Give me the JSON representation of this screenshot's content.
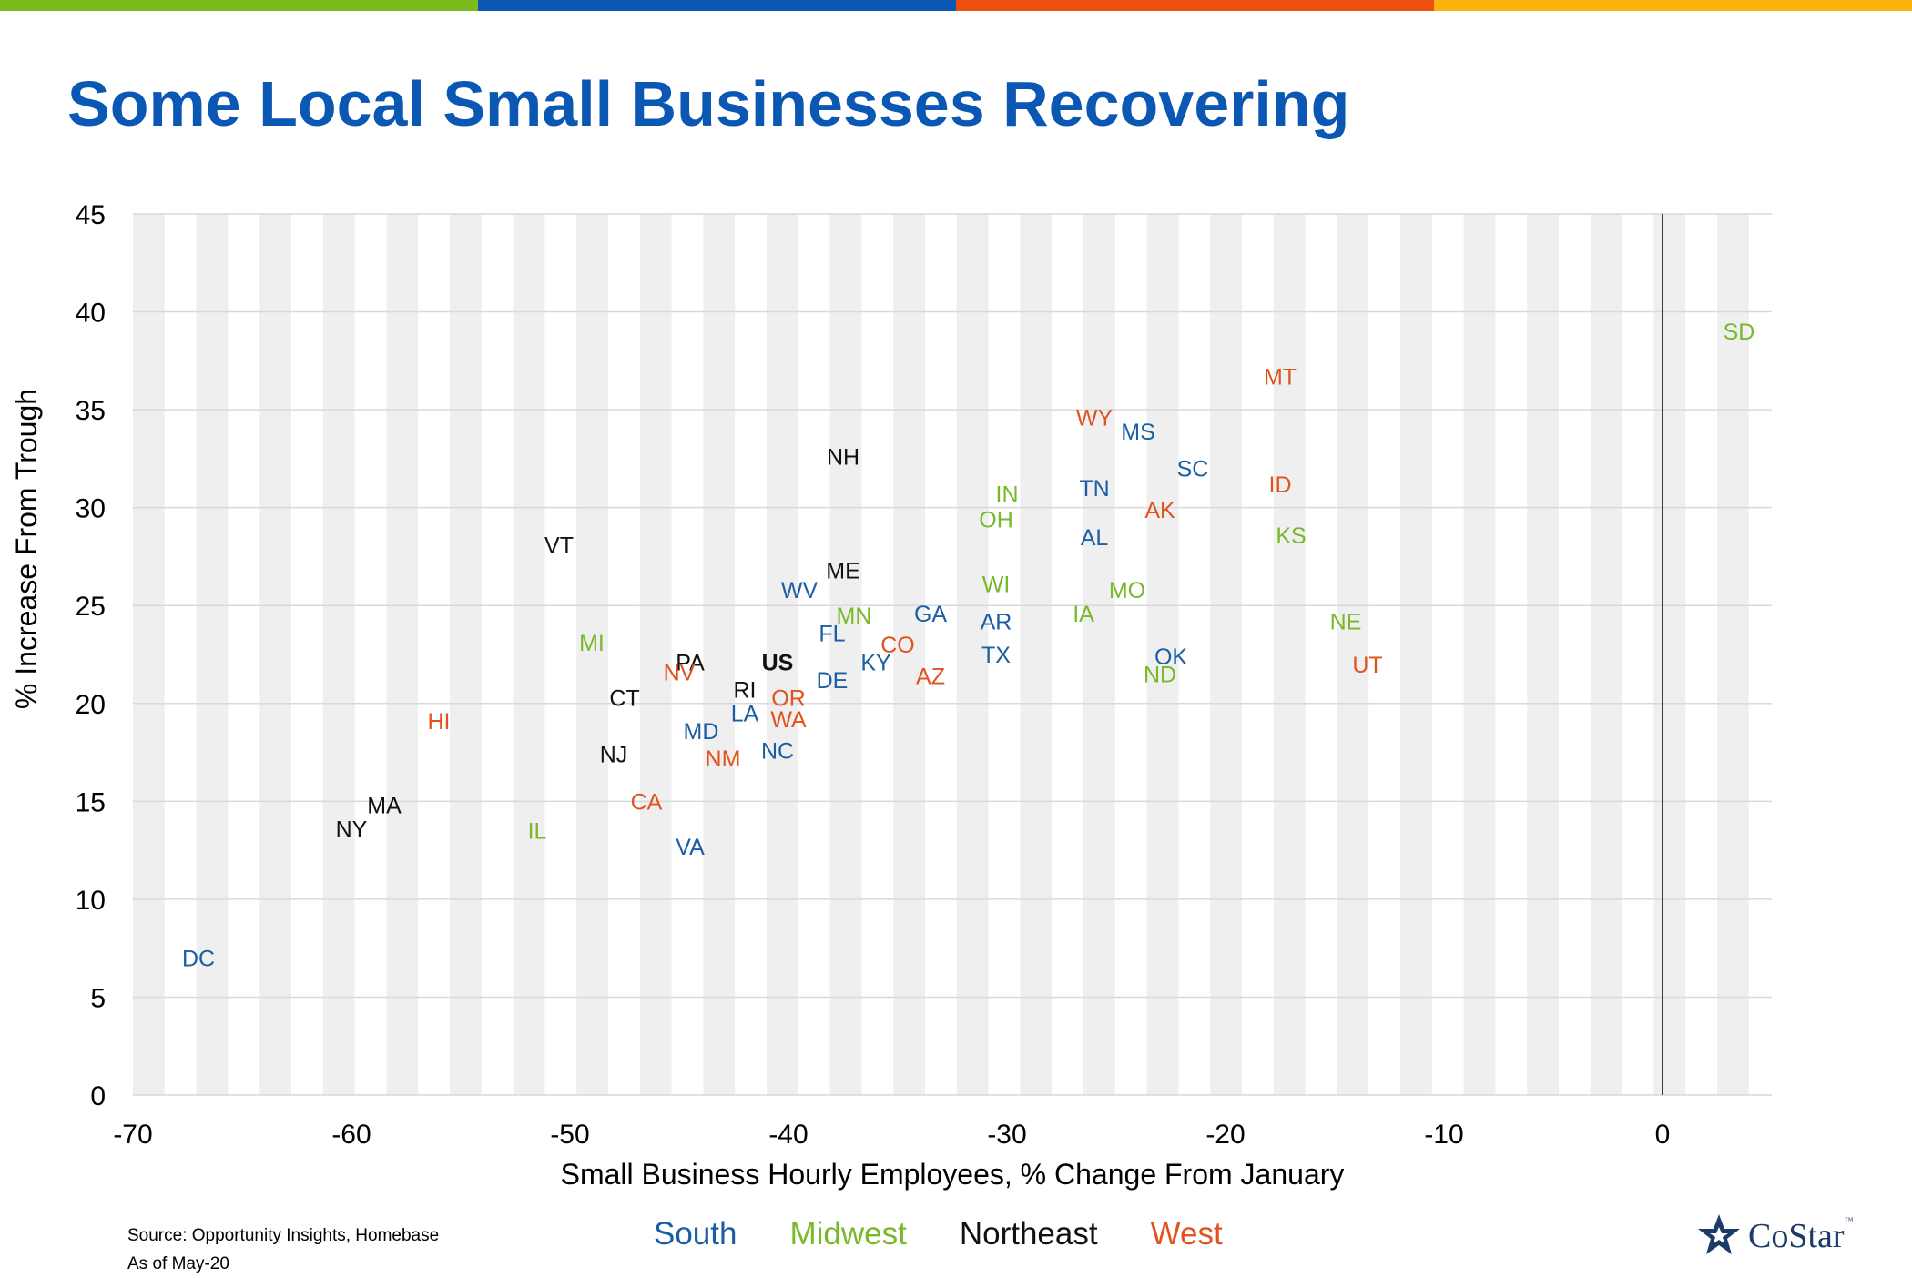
{
  "header": {
    "title": "Some Local Small Businesses Recovering",
    "bar_colors": [
      "#7cba1e",
      "#0a57b4",
      "#f04e0c",
      "#fbb40f"
    ]
  },
  "colors": {
    "South": "#1b5ea6",
    "Midwest": "#78b82a",
    "Northeast": "#111111",
    "West": "#e0531f"
  },
  "chart_data": {
    "type": "scatter",
    "title": "",
    "xlabel": "Small Business Hourly Employees, % Change From January",
    "ylabel": "% Increase From Trough",
    "xlim": [
      -70,
      5
    ],
    "ylim": [
      0,
      45
    ],
    "xticks": [
      -70,
      -60,
      -50,
      -40,
      -30,
      -20,
      -10,
      0
    ],
    "yticks": [
      0,
      5,
      10,
      15,
      20,
      25,
      30,
      35,
      40,
      45
    ],
    "xtick_labels": [
      "-70",
      "-60",
      "-50",
      "-40",
      "-30",
      "-20",
      "-10",
      "0"
    ],
    "ytick_labels": [
      "0",
      "5",
      "10",
      "15",
      "20",
      "25",
      "30",
      "35",
      "40",
      "45"
    ],
    "legend": [
      "South",
      "Midwest",
      "Northeast",
      "West"
    ],
    "legend_position": "bottom-center",
    "points": [
      {
        "label": "SD",
        "x": 3.5,
        "y": 39.0,
        "region": "Midwest"
      },
      {
        "label": "MT",
        "x": -17.5,
        "y": 36.7,
        "region": "West"
      },
      {
        "label": "WY",
        "x": -26.0,
        "y": 34.6,
        "region": "West"
      },
      {
        "label": "MS",
        "x": -24.0,
        "y": 33.9,
        "region": "South"
      },
      {
        "label": "NH",
        "x": -37.5,
        "y": 32.6,
        "region": "Northeast"
      },
      {
        "label": "SC",
        "x": -21.5,
        "y": 32.0,
        "region": "South"
      },
      {
        "label": "ID",
        "x": -17.5,
        "y": 31.2,
        "region": "West"
      },
      {
        "label": "TN",
        "x": -26.0,
        "y": 31.0,
        "region": "South"
      },
      {
        "label": "IN",
        "x": -30.0,
        "y": 30.7,
        "region": "Midwest"
      },
      {
        "label": "AK",
        "x": -23.0,
        "y": 29.9,
        "region": "West"
      },
      {
        "label": "OH",
        "x": -30.5,
        "y": 29.4,
        "region": "Midwest"
      },
      {
        "label": "KS",
        "x": -17.0,
        "y": 28.6,
        "region": "Midwest"
      },
      {
        "label": "AL",
        "x": -26.0,
        "y": 28.5,
        "region": "South"
      },
      {
        "label": "VT",
        "x": -50.5,
        "y": 28.1,
        "region": "Northeast"
      },
      {
        "label": "ME",
        "x": -37.5,
        "y": 26.8,
        "region": "Northeast"
      },
      {
        "label": "WI",
        "x": -30.5,
        "y": 26.1,
        "region": "Midwest"
      },
      {
        "label": "WV",
        "x": -39.5,
        "y": 25.8,
        "region": "South"
      },
      {
        "label": "MO",
        "x": -24.5,
        "y": 25.8,
        "region": "Midwest"
      },
      {
        "label": "IA",
        "x": -26.5,
        "y": 24.6,
        "region": "Midwest"
      },
      {
        "label": "GA",
        "x": -33.5,
        "y": 24.6,
        "region": "South"
      },
      {
        "label": "MN",
        "x": -37.0,
        "y": 24.5,
        "region": "Midwest"
      },
      {
        "label": "AR",
        "x": -30.5,
        "y": 24.2,
        "region": "South"
      },
      {
        "label": "NE",
        "x": -14.5,
        "y": 24.2,
        "region": "Midwest"
      },
      {
        "label": "FL",
        "x": -38.0,
        "y": 23.6,
        "region": "South"
      },
      {
        "label": "MI",
        "x": -49.0,
        "y": 23.1,
        "region": "Midwest"
      },
      {
        "label": "CO",
        "x": -35.0,
        "y": 23.0,
        "region": "West"
      },
      {
        "label": "TX",
        "x": -30.5,
        "y": 22.5,
        "region": "South"
      },
      {
        "label": "OK",
        "x": -22.5,
        "y": 22.4,
        "region": "South"
      },
      {
        "label": "PA",
        "x": -44.5,
        "y": 22.1,
        "region": "Northeast"
      },
      {
        "label": "US",
        "x": -40.5,
        "y": 22.1,
        "region": "Northeast"
      },
      {
        "label": "KY",
        "x": -36.0,
        "y": 22.1,
        "region": "South"
      },
      {
        "label": "UT",
        "x": -13.5,
        "y": 22.0,
        "region": "West"
      },
      {
        "label": "NV",
        "x": -45.0,
        "y": 21.6,
        "region": "West"
      },
      {
        "label": "ND",
        "x": -23.0,
        "y": 21.5,
        "region": "Midwest"
      },
      {
        "label": "AZ",
        "x": -33.5,
        "y": 21.4,
        "region": "West"
      },
      {
        "label": "DE",
        "x": -38.0,
        "y": 21.2,
        "region": "South"
      },
      {
        "label": "RI",
        "x": -42.0,
        "y": 20.7,
        "region": "Northeast"
      },
      {
        "label": "CT",
        "x": -47.5,
        "y": 20.3,
        "region": "Northeast"
      },
      {
        "label": "OR",
        "x": -40.0,
        "y": 20.3,
        "region": "West"
      },
      {
        "label": "LA",
        "x": -42.0,
        "y": 19.5,
        "region": "South"
      },
      {
        "label": "HI",
        "x": -56.0,
        "y": 19.1,
        "region": "West"
      },
      {
        "label": "WA",
        "x": -40.0,
        "y": 19.2,
        "region": "West"
      },
      {
        "label": "MD",
        "x": -44.0,
        "y": 18.6,
        "region": "South"
      },
      {
        "label": "NJ",
        "x": -48.0,
        "y": 17.4,
        "region": "Northeast"
      },
      {
        "label": "NC",
        "x": -40.5,
        "y": 17.6,
        "region": "South"
      },
      {
        "label": "NM",
        "x": -43.0,
        "y": 17.2,
        "region": "West"
      },
      {
        "label": "CA",
        "x": -46.5,
        "y": 15.0,
        "region": "West"
      },
      {
        "label": "MA",
        "x": -58.5,
        "y": 14.8,
        "region": "Northeast"
      },
      {
        "label": "NY",
        "x": -60.0,
        "y": 13.6,
        "region": "Northeast"
      },
      {
        "label": "IL",
        "x": -51.5,
        "y": 13.5,
        "region": "Midwest"
      },
      {
        "label": "VA",
        "x": -44.5,
        "y": 12.7,
        "region": "South"
      },
      {
        "label": "DC",
        "x": -67.0,
        "y": 7.0,
        "region": "South"
      }
    ]
  },
  "footer": {
    "source_line1": "Source: Opportunity Insights, Homebase",
    "source_line2": "As of May-20",
    "legend": {
      "south": "South",
      "midwest": "Midwest",
      "northeast": "Northeast",
      "west": "West"
    },
    "logo_text": "CoStar",
    "logo_tm": "™"
  }
}
